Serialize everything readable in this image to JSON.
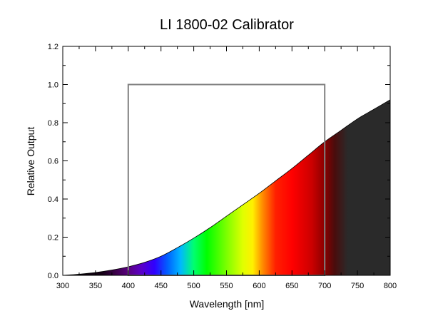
{
  "chart_data": {
    "type": "area",
    "title": "LI 1800-02 Calibrator",
    "xlabel": "Wavelength [nm]",
    "ylabel": "Relative Output",
    "xlim": [
      300,
      800
    ],
    "ylim": [
      0,
      1.2
    ],
    "x_ticks": [
      300,
      350,
      400,
      450,
      500,
      550,
      600,
      650,
      700,
      750,
      800
    ],
    "y_ticks": [
      0.0,
      0.2,
      0.4,
      0.6,
      0.8,
      1.0,
      1.2
    ],
    "x_tick_labels": [
      "300",
      "350",
      "400",
      "450",
      "500",
      "550",
      "600",
      "650",
      "700",
      "750",
      "800"
    ],
    "y_tick_labels": [
      "0.0",
      "0.2",
      "0.4",
      "0.6",
      "0.8",
      "1.0",
      "1.2"
    ],
    "grid": false,
    "series": [
      {
        "x": [
          300,
          325,
          350,
          375,
          400,
          425,
          450,
          475,
          500,
          525,
          550,
          575,
          600,
          625,
          650,
          675,
          700,
          725,
          750,
          775,
          800
        ],
        "y": [
          0.0,
          0.006,
          0.015,
          0.028,
          0.045,
          0.068,
          0.1,
          0.145,
          0.195,
          0.25,
          0.31,
          0.37,
          0.43,
          0.495,
          0.56,
          0.63,
          0.7,
          0.76,
          0.82,
          0.87,
          0.92
        ]
      }
    ],
    "par_box": {
      "x_start": 400,
      "x_end": 700,
      "y_top": 1.0
    },
    "colors": {
      "axis": "#000000",
      "box": "#808080",
      "outline": "#000000",
      "beyond_visible": "#2a2a2a"
    }
  }
}
